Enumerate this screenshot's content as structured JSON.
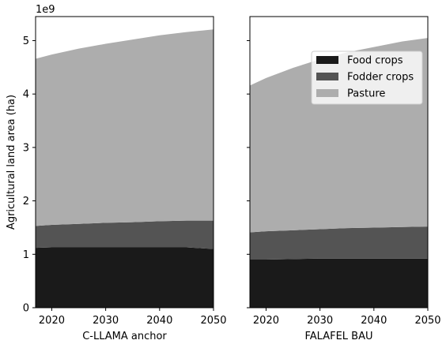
{
  "chart_data": {
    "type": "area",
    "stacked": true,
    "ylabel": "Agricultural land area (ha)",
    "y_offset_text": "1e9",
    "ylim": [
      0,
      5.45
    ],
    "yticks": [
      0,
      1,
      2,
      3,
      4,
      5
    ],
    "sharey": true,
    "series_colors": {
      "Food crops": "#1a1a1a",
      "Fodder crops": "#545454",
      "Pasture": "#adadad"
    },
    "legend": {
      "placement": "upper-right of second panel",
      "entries": [
        "Food crops",
        "Fodder crops",
        "Pasture"
      ]
    },
    "panels": [
      {
        "xlabel": "C-LLAMA anchor",
        "xlim": [
          2017,
          2050
        ],
        "xticks": [
          2020,
          2030,
          2040,
          2050
        ],
        "x": [
          2017,
          2020,
          2025,
          2030,
          2035,
          2040,
          2045,
          2050
        ],
        "series": [
          {
            "name": "Food crops",
            "values": [
              1.12,
              1.13,
              1.13,
              1.13,
              1.13,
              1.13,
              1.13,
              1.1
            ]
          },
          {
            "name": "Fodder crops",
            "values": [
              0.41,
              0.42,
              0.44,
              0.46,
              0.47,
              0.49,
              0.5,
              0.53
            ]
          },
          {
            "name": "Pasture",
            "values": [
              3.13,
              3.19,
              3.28,
              3.35,
              3.42,
              3.48,
              3.53,
              3.58
            ]
          }
        ]
      },
      {
        "xlabel": "FALAFEL BAU",
        "xlim": [
          2017,
          2050
        ],
        "xticks": [
          2020,
          2030,
          2040,
          2050
        ],
        "x": [
          2017,
          2020,
          2025,
          2030,
          2035,
          2040,
          2045,
          2050
        ],
        "series": [
          {
            "name": "Food crops",
            "values": [
              0.9,
              0.9,
              0.91,
              0.92,
              0.92,
              0.92,
              0.92,
              0.92
            ]
          },
          {
            "name": "Fodder crops",
            "values": [
              0.51,
              0.53,
              0.54,
              0.55,
              0.57,
              0.58,
              0.59,
              0.6
            ]
          },
          {
            "name": "Pasture",
            "values": [
              2.75,
              2.87,
              3.04,
              3.18,
              3.29,
              3.38,
              3.47,
              3.53
            ]
          }
        ]
      }
    ]
  }
}
